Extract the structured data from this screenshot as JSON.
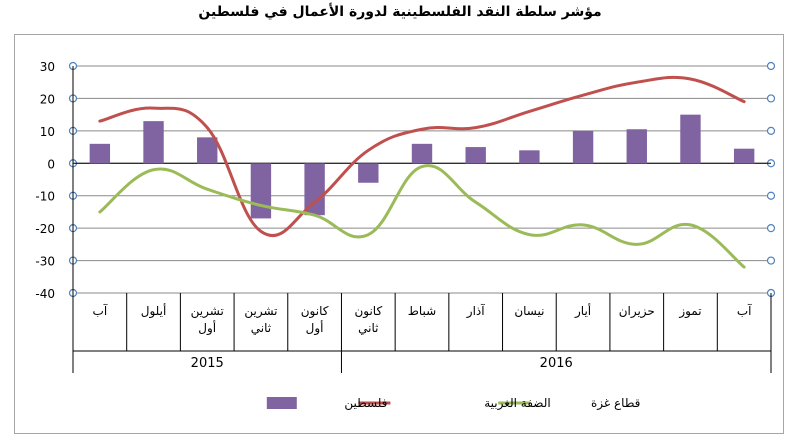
{
  "chart_data": {
    "type": "bar+line",
    "title": "مؤشر سلطة النقد الفلسطينية لدورة الأعمال في فلسطين",
    "categories": [
      [
        "آب"
      ],
      [
        "أيلول"
      ],
      [
        "تشرين",
        "أول"
      ],
      [
        "تشرين",
        "ثاني"
      ],
      [
        "كانون",
        "أول"
      ],
      [
        "كانون",
        "ثاني"
      ],
      [
        "شباط"
      ],
      [
        "آذار"
      ],
      [
        "نيسان"
      ],
      [
        "أيار"
      ],
      [
        "حزيران"
      ],
      [
        "تموز"
      ],
      [
        "آب"
      ]
    ],
    "groups": [
      {
        "label": "2015",
        "start": 0,
        "end": 4
      },
      {
        "label": "2016",
        "start": 5,
        "end": 12
      }
    ],
    "yticks": [
      "30",
      "20",
      "10",
      "0",
      "-10",
      "-20",
      "-30",
      "-40"
    ],
    "ylim": [
      -40,
      30
    ],
    "legend_position": "bottom",
    "series": [
      {
        "name": "فلسطين",
        "kind": "bar",
        "color": "#8064a2",
        "values": [
          6,
          13,
          8,
          -17,
          -16,
          -6,
          6,
          5,
          4,
          10,
          10.5,
          15,
          4.5
        ]
      },
      {
        "name": "الضفة الغربية",
        "kind": "line",
        "color": "#c0504d",
        "values": [
          13,
          17,
          11,
          -21,
          -12,
          4,
          10.5,
          11,
          16,
          21,
          25,
          26,
          19
        ]
      },
      {
        "name": "قطاع غزة",
        "kind": "line",
        "color": "#9bbb59",
        "values": [
          -15,
          -2,
          -8,
          -13,
          -16,
          -22,
          -1,
          -12,
          -22,
          -19,
          -25,
          -19,
          -32
        ]
      }
    ]
  }
}
